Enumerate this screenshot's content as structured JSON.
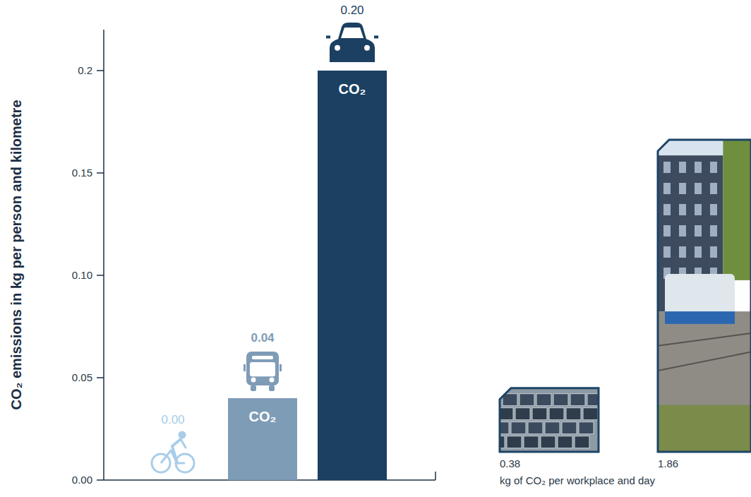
{
  "chart_data": [
    {
      "type": "bar",
      "y_label": "CO₂ emissions in kg per person and kilometre",
      "categories": [
        null,
        null,
        null
      ],
      "values": [
        0,
        0.04,
        0.2
      ],
      "value_labels": [
        "0.00",
        "0.04",
        "0.20"
      ],
      "data_labels": true,
      "colors": [
        "#a9cde9",
        "#7f9cb7",
        "#1b4061"
      ],
      "bar_labels": [
        null,
        "CO₂",
        "CO₂"
      ],
      "ylim": [
        0,
        0.22
      ],
      "yticks": [
        {
          "value": 0,
          "label": "0.00"
        },
        0.05,
        {
          "value": 0.1,
          "label": "0.10"
        },
        0.15,
        0.2
      ],
      "grid": false,
      "tick_labels": "y"
    },
    {
      "type": "pictogram",
      "x_label": "kg of CO₂ per workplace and day",
      "values": [
        0.38,
        1.86
      ],
      "value_labels": [
        "0.38",
        "1.86"
      ],
      "data_labels": true
    }
  ]
}
